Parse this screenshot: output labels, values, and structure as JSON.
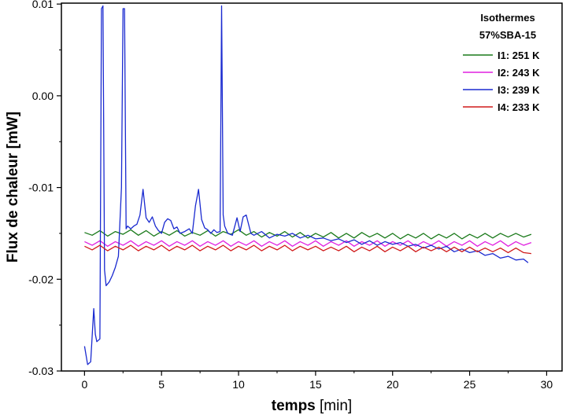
{
  "chart_data": {
    "type": "line",
    "xlabel": {
      "bold": "temps",
      "rest": " [min]"
    },
    "ylabel": "Flux de chaleur [mW]",
    "xlim": [
      -1.5,
      31
    ],
    "ylim": [
      -0.03,
      0.0101
    ],
    "xticks": [
      0,
      5,
      10,
      15,
      20,
      25,
      30
    ],
    "xtick_labels": [
      "0",
      "5",
      "10",
      "15",
      "20",
      "25",
      "30"
    ],
    "yticks": [
      -0.03,
      -0.02,
      -0.01,
      0.0,
      0.01
    ],
    "ytick_labels": [
      "-0.03",
      "-0.02",
      "-0.01",
      "0.00",
      "0.01"
    ],
    "grid": false,
    "legend": {
      "placement": "top-right",
      "title_line1": "Isothermes",
      "title_line2": "57%SBA-15"
    },
    "series": [
      {
        "name": "I1: 251 K",
        "color": "#1a7a1a",
        "x": [
          0.0,
          0.5,
          1.0,
          1.5,
          2.0,
          2.5,
          3.0,
          3.5,
          4.0,
          4.5,
          5.0,
          5.5,
          6.0,
          6.5,
          7.0,
          7.5,
          8.0,
          8.5,
          9.0,
          9.5,
          10.0,
          10.5,
          11.0,
          11.5,
          12.0,
          12.5,
          13.0,
          13.5,
          14.0,
          14.5,
          15.0,
          15.5,
          16.0,
          16.5,
          17.0,
          17.5,
          18.0,
          18.5,
          19.0,
          19.5,
          20.0,
          20.5,
          21.0,
          21.5,
          22.0,
          22.5,
          23.0,
          23.5,
          24.0,
          24.5,
          25.0,
          25.5,
          26.0,
          26.5,
          27.0,
          27.5,
          28.0,
          28.5,
          29.0
        ],
        "y": [
          -0.0149,
          -0.0152,
          -0.0147,
          -0.0153,
          -0.0148,
          -0.0151,
          -0.0146,
          -0.0152,
          -0.0147,
          -0.0153,
          -0.0148,
          -0.0152,
          -0.0147,
          -0.0153,
          -0.0149,
          -0.0152,
          -0.0147,
          -0.0153,
          -0.0148,
          -0.0151,
          -0.0146,
          -0.0152,
          -0.0148,
          -0.0154,
          -0.0149,
          -0.0153,
          -0.0148,
          -0.0154,
          -0.0149,
          -0.0155,
          -0.015,
          -0.0154,
          -0.0149,
          -0.0155,
          -0.015,
          -0.0155,
          -0.0149,
          -0.0154,
          -0.015,
          -0.0155,
          -0.015,
          -0.0156,
          -0.0151,
          -0.0155,
          -0.015,
          -0.0156,
          -0.0151,
          -0.0155,
          -0.015,
          -0.0156,
          -0.0151,
          -0.0155,
          -0.015,
          -0.0155,
          -0.015,
          -0.0154,
          -0.015,
          -0.0154,
          -0.0151
        ]
      },
      {
        "name": "I2: 243 K",
        "color": "#e020e0",
        "x": [
          0.0,
          0.5,
          1.0,
          1.5,
          2.0,
          2.5,
          3.0,
          3.5,
          4.0,
          4.5,
          5.0,
          5.5,
          6.0,
          6.5,
          7.0,
          7.5,
          8.0,
          8.5,
          9.0,
          9.5,
          10.0,
          10.5,
          11.0,
          11.5,
          12.0,
          12.5,
          13.0,
          13.5,
          14.0,
          14.5,
          15.0,
          15.5,
          16.0,
          16.5,
          17.0,
          17.5,
          18.0,
          18.5,
          19.0,
          19.5,
          20.0,
          20.5,
          21.0,
          21.5,
          22.0,
          22.5,
          23.0,
          23.5,
          24.0,
          24.5,
          25.0,
          25.5,
          26.0,
          26.5,
          27.0,
          27.5,
          28.0,
          28.5,
          29.0
        ],
        "y": [
          -0.0159,
          -0.0163,
          -0.0158,
          -0.0164,
          -0.0159,
          -0.0163,
          -0.0158,
          -0.0164,
          -0.0159,
          -0.0163,
          -0.0158,
          -0.0164,
          -0.0159,
          -0.0163,
          -0.0158,
          -0.0164,
          -0.0159,
          -0.0163,
          -0.0158,
          -0.0164,
          -0.0159,
          -0.0163,
          -0.0158,
          -0.0164,
          -0.0159,
          -0.0163,
          -0.0158,
          -0.0164,
          -0.0159,
          -0.0163,
          -0.0158,
          -0.0164,
          -0.0159,
          -0.0163,
          -0.0158,
          -0.0164,
          -0.0159,
          -0.0163,
          -0.0158,
          -0.0164,
          -0.0159,
          -0.0163,
          -0.0158,
          -0.0164,
          -0.0159,
          -0.0163,
          -0.0158,
          -0.0164,
          -0.0159,
          -0.0163,
          -0.0158,
          -0.0164,
          -0.0159,
          -0.0163,
          -0.0158,
          -0.0164,
          -0.0159,
          -0.0163,
          -0.016
        ]
      },
      {
        "name": "I3: 239 K",
        "color": "#1a2ad0",
        "x": [
          0.0,
          0.2,
          0.4,
          0.6,
          0.7,
          0.8,
          1.0,
          1.1,
          1.2,
          1.3,
          1.4,
          1.6,
          1.8,
          2.0,
          2.2,
          2.4,
          2.5,
          2.6,
          2.7,
          2.8,
          3.0,
          3.2,
          3.4,
          3.6,
          3.8,
          4.0,
          4.2,
          4.4,
          4.6,
          4.8,
          5.0,
          5.2,
          5.4,
          5.6,
          5.8,
          6.0,
          6.2,
          6.5,
          6.8,
          7.0,
          7.2,
          7.4,
          7.6,
          7.8,
          8.0,
          8.2,
          8.4,
          8.6,
          8.8,
          8.9,
          9.0,
          9.1,
          9.3,
          9.6,
          9.9,
          10.1,
          10.3,
          10.5,
          10.8,
          11.0,
          11.5,
          12.0,
          12.5,
          13.0,
          13.5,
          14.0,
          14.5,
          15.0,
          15.5,
          16.0,
          16.5,
          17.0,
          17.5,
          18.0,
          18.5,
          19.0,
          19.5,
          20.0,
          20.5,
          21.0,
          21.5,
          22.0,
          22.5,
          23.0,
          23.5,
          24.0,
          24.5,
          25.0,
          25.5,
          26.0,
          26.5,
          27.0,
          27.5,
          28.0,
          28.5,
          28.8
        ],
        "y": [
          -0.0273,
          -0.0293,
          -0.029,
          -0.0232,
          -0.026,
          -0.0268,
          -0.0265,
          0.0095,
          0.0098,
          -0.019,
          -0.0207,
          -0.0203,
          -0.0196,
          -0.0187,
          -0.0175,
          -0.01,
          0.0095,
          0.0095,
          -0.0145,
          -0.0142,
          -0.0145,
          -0.0142,
          -0.014,
          -0.013,
          -0.0102,
          -0.0133,
          -0.0138,
          -0.0132,
          -0.0142,
          -0.0147,
          -0.015,
          -0.0138,
          -0.0134,
          -0.0136,
          -0.0145,
          -0.0143,
          -0.015,
          -0.0148,
          -0.0145,
          -0.015,
          -0.012,
          -0.0102,
          -0.0135,
          -0.0144,
          -0.0146,
          -0.015,
          -0.0146,
          -0.0149,
          -0.0148,
          0.0098,
          -0.013,
          -0.0142,
          -0.015,
          -0.0152,
          -0.0133,
          -0.0148,
          -0.0132,
          -0.013,
          -0.015,
          -0.0152,
          -0.0148,
          -0.0155,
          -0.0151,
          -0.0153,
          -0.015,
          -0.0155,
          -0.0152,
          -0.0156,
          -0.0155,
          -0.0158,
          -0.0156,
          -0.016,
          -0.0157,
          -0.0162,
          -0.0158,
          -0.0163,
          -0.0159,
          -0.0162,
          -0.016,
          -0.0164,
          -0.0162,
          -0.0166,
          -0.0163,
          -0.0167,
          -0.0164,
          -0.017,
          -0.0167,
          -0.0171,
          -0.0169,
          -0.0174,
          -0.0172,
          -0.0177,
          -0.0175,
          -0.0179,
          -0.0178,
          -0.0182
        ]
      },
      {
        "name": "I4: 233 K",
        "color": "#d01a1a",
        "x": [
          0.0,
          0.5,
          1.0,
          1.5,
          2.0,
          2.5,
          3.0,
          3.5,
          4.0,
          4.5,
          5.0,
          5.5,
          6.0,
          6.5,
          7.0,
          7.5,
          8.0,
          8.5,
          9.0,
          9.5,
          10.0,
          10.5,
          11.0,
          11.5,
          12.0,
          12.5,
          13.0,
          13.5,
          14.0,
          14.5,
          15.0,
          15.5,
          16.0,
          16.5,
          17.0,
          17.5,
          18.0,
          18.5,
          19.0,
          19.5,
          20.0,
          20.5,
          21.0,
          21.5,
          22.0,
          22.5,
          23.0,
          23.5,
          24.0,
          24.5,
          25.0,
          25.5,
          26.0,
          26.5,
          27.0,
          27.5,
          28.0,
          28.5,
          29.0
        ],
        "y": [
          -0.0164,
          -0.0168,
          -0.0163,
          -0.0169,
          -0.0164,
          -0.0168,
          -0.0163,
          -0.0169,
          -0.0164,
          -0.0168,
          -0.0163,
          -0.0169,
          -0.0164,
          -0.0168,
          -0.0163,
          -0.0169,
          -0.0164,
          -0.0168,
          -0.0163,
          -0.0169,
          -0.0164,
          -0.0168,
          -0.0163,
          -0.0169,
          -0.0164,
          -0.0168,
          -0.0163,
          -0.0169,
          -0.0164,
          -0.0168,
          -0.0164,
          -0.0169,
          -0.0165,
          -0.0169,
          -0.0164,
          -0.017,
          -0.0165,
          -0.0169,
          -0.0164,
          -0.017,
          -0.0165,
          -0.0169,
          -0.0164,
          -0.017,
          -0.0165,
          -0.0169,
          -0.0165,
          -0.017,
          -0.0165,
          -0.017,
          -0.0165,
          -0.017,
          -0.0166,
          -0.017,
          -0.0166,
          -0.0171,
          -0.0166,
          -0.0171,
          -0.0172
        ]
      }
    ]
  }
}
